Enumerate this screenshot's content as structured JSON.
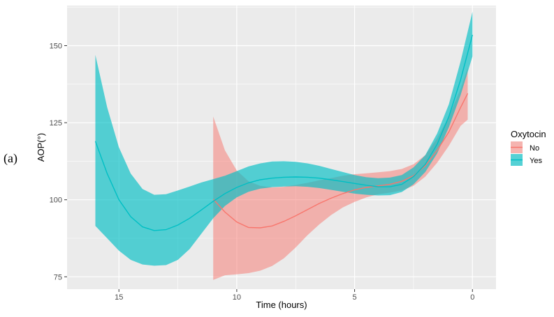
{
  "panel_label": "(a)",
  "chart_data": {
    "type": "area",
    "title": "",
    "xlabel": "Time (hours)",
    "ylabel": "AOP(°)",
    "x_reversed": true,
    "xlim": [
      17.2,
      -1.0
    ],
    "ylim": [
      71,
      163
    ],
    "x_ticks": [
      15,
      10,
      5,
      0
    ],
    "y_ticks": [
      75,
      100,
      125,
      150
    ],
    "x_tick_labels": [
      "15",
      "10",
      "5",
      "0"
    ],
    "y_tick_labels": [
      "75",
      "100",
      "125",
      "150"
    ],
    "grid": true,
    "legend": {
      "title": "Oxytocin",
      "position": "right"
    },
    "series": [
      {
        "name": "No",
        "color": "#F8766D",
        "fill": "#F8766D",
        "x": [
          11,
          10.5,
          10,
          9.5,
          9,
          8.5,
          8,
          7.5,
          7,
          6.5,
          6,
          5.5,
          5,
          4.5,
          4,
          3.5,
          3,
          2.5,
          2,
          1.5,
          1,
          0.5,
          0.2
        ],
        "y": [
          100.2,
          96.0,
          92.8,
          91.0,
          90.9,
          91.5,
          93.0,
          94.8,
          96.8,
          98.8,
          100.5,
          102.0,
          103.2,
          104.0,
          104.5,
          105.0,
          106.0,
          107.8,
          111.0,
          116.0,
          122.0,
          130.0,
          134.5
        ],
        "lower": [
          74.0,
          75.5,
          75.8,
          76.2,
          77.0,
          78.5,
          81.0,
          84.5,
          88.5,
          92.0,
          95.0,
          97.5,
          99.3,
          100.8,
          101.8,
          102.3,
          103.0,
          104.5,
          107.5,
          112.0,
          117.5,
          124.0,
          126.0
        ],
        "upper": [
          127.0,
          116.0,
          109.5,
          106.0,
          104.5,
          104.0,
          104.2,
          104.8,
          105.5,
          106.3,
          107.0,
          107.8,
          108.3,
          108.6,
          108.9,
          109.3,
          110.0,
          111.5,
          114.5,
          120.0,
          127.0,
          136.0,
          143.0
        ]
      },
      {
        "name": "Yes",
        "color": "#00BFC4",
        "fill": "#00BFC4",
        "x": [
          16,
          15.5,
          15,
          14.5,
          14,
          13.5,
          13,
          12.5,
          12,
          11.5,
          11,
          10.5,
          10,
          9.5,
          9,
          8.5,
          8,
          7.5,
          7,
          6.5,
          6,
          5.5,
          5,
          4.5,
          4,
          3.5,
          3,
          2.5,
          2,
          1.5,
          1,
          0.5,
          0
        ],
        "y": [
          119.0,
          108.5,
          100.0,
          94.5,
          91.2,
          90.0,
          90.3,
          91.8,
          94.0,
          96.7,
          99.5,
          102.0,
          104.0,
          105.5,
          106.5,
          107.0,
          107.3,
          107.4,
          107.3,
          107.0,
          106.5,
          105.9,
          105.3,
          104.7,
          104.2,
          104.2,
          105.0,
          107.5,
          111.5,
          118.0,
          127.0,
          139.0,
          153.5
        ],
        "lower": [
          91.5,
          87.5,
          83.5,
          80.5,
          79.0,
          78.6,
          78.8,
          80.5,
          84.0,
          89.0,
          94.0,
          98.0,
          100.8,
          102.6,
          103.6,
          104.1,
          104.3,
          104.4,
          104.2,
          103.8,
          103.2,
          102.6,
          102.0,
          101.6,
          101.4,
          101.5,
          102.5,
          105.0,
          109.0,
          115.0,
          123.5,
          134.0,
          146.5
        ],
        "upper": [
          147.0,
          130.0,
          117.0,
          108.5,
          103.5,
          101.6,
          101.8,
          103.0,
          104.3,
          105.6,
          106.7,
          107.8,
          109.3,
          110.8,
          111.8,
          112.4,
          112.5,
          112.3,
          111.8,
          111.0,
          110.0,
          109.0,
          108.0,
          107.3,
          107.0,
          107.2,
          108.0,
          110.5,
          114.5,
          121.5,
          131.0,
          145.0,
          161.0
        ]
      }
    ]
  }
}
